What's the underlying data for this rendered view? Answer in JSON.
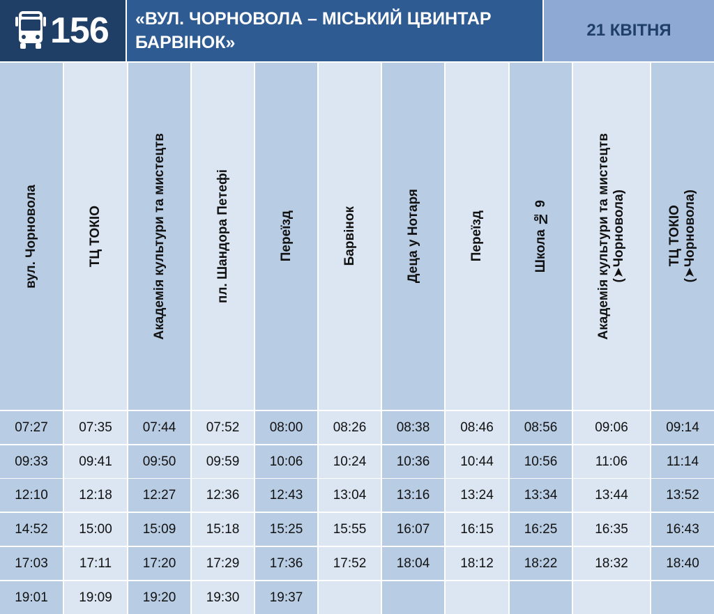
{
  "header": {
    "route_number": "156",
    "route_title": "«ВУЛ. ЧОРНОВОЛА – МІСЬКИЙ ЦВИНТАР БАРВІНОК»",
    "date": "21 КВІТНЯ"
  },
  "stops": [
    {
      "name": "вул. Чорновола",
      "sub": ""
    },
    {
      "name": "ТЦ ТОКІО",
      "sub": ""
    },
    {
      "name": "Академія культури та мистецтв",
      "sub": ""
    },
    {
      "name": "пл. Шандора Петефі",
      "sub": ""
    },
    {
      "name": "Переїзд",
      "sub": ""
    },
    {
      "name": "Барвінок",
      "sub": ""
    },
    {
      "name": "Деца у Нотаря",
      "sub": ""
    },
    {
      "name": "Переїзд",
      "sub": ""
    },
    {
      "name": "Школа № 9",
      "sub": ""
    },
    {
      "name": "Академія культури та мистецтв",
      "sub": "(➤Чорновола)"
    },
    {
      "name": "ТЦ ТОКІО",
      "sub": "(➤Чорновола)"
    }
  ],
  "rows": [
    [
      "07:27",
      "07:35",
      "07:44",
      "07:52",
      "08:00",
      "08:26",
      "08:38",
      "08:46",
      "08:56",
      "09:06",
      "09:14"
    ],
    [
      "09:33",
      "09:41",
      "09:50",
      "09:59",
      "10:06",
      "10:24",
      "10:36",
      "10:44",
      "10:56",
      "11:06",
      "11:14"
    ],
    [
      "12:10",
      "12:18",
      "12:27",
      "12:36",
      "12:43",
      "13:04",
      "13:16",
      "13:24",
      "13:34",
      "13:44",
      "13:52"
    ],
    [
      "14:52",
      "15:00",
      "15:09",
      "15:18",
      "15:25",
      "15:55",
      "16:07",
      "16:15",
      "16:25",
      "16:35",
      "16:43"
    ],
    [
      "17:03",
      "17:11",
      "17:20",
      "17:29",
      "17:36",
      "17:52",
      "18:04",
      "18:12",
      "18:22",
      "18:32",
      "18:40"
    ],
    [
      "19:01",
      "19:09",
      "19:20",
      "19:30",
      "19:37",
      "",
      "",
      "",
      "",
      "",
      ""
    ]
  ],
  "colors": {
    "route_bg": "#1f3f66",
    "title_bg": "#2f5b93",
    "date_bg": "#8ea9d4",
    "cell_dark": "#b8cce4",
    "cell_light": "#dce6f2"
  }
}
